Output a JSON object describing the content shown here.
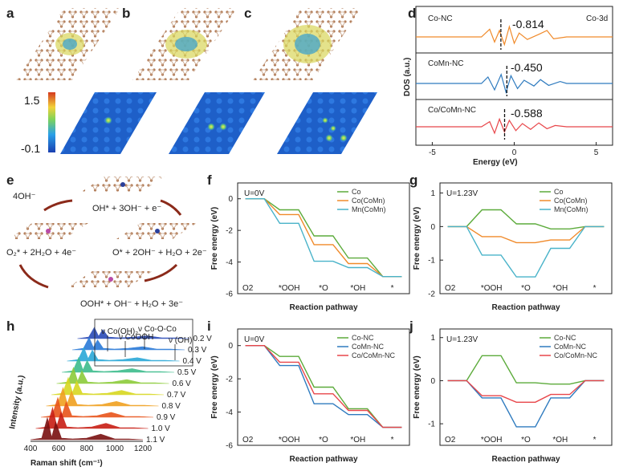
{
  "panel_labels": {
    "a": "a",
    "b": "b",
    "c": "c",
    "d": "d",
    "e": "e",
    "f": "f",
    "g": "g",
    "h": "h",
    "i": "i",
    "j": "j"
  },
  "colorbar": {
    "max": "1.5",
    "min": "-0.1"
  },
  "colors": {
    "orange": "#f08a2a",
    "blue": "#2f7bbf",
    "red": "#e8464a",
    "green": "#5cab3b",
    "cyan": "#49b3c9"
  },
  "icons": [
    "graphene-lattice-icon",
    "charge-density-icon",
    "reaction-arrow-icon"
  ],
  "panel_e": {
    "top": "OH* + 3OH⁻ + e⁻",
    "left_top": "4OH⁻",
    "left": "O₂* + 2H₂O + 4e⁻",
    "right": "O* + 2OH⁻ + H₂O + 2e⁻",
    "bottom": "OOH* + OH⁻ + H₂O + 3e⁻"
  },
  "chart_data": [
    {
      "id": "d",
      "type": "line",
      "title": "Co-3d",
      "xlabel": "Energy (eV)",
      "ylabel": "DOS (a.u.)",
      "xlim": [
        -6,
        6
      ],
      "xticks": [
        -5,
        0,
        5
      ],
      "series": [
        {
          "name": "Co-NC",
          "d_band_center": "-0.814",
          "color": "#f08a2a"
        },
        {
          "name": "CoMn-NC",
          "d_band_center": "-0.450",
          "color": "#2f7bbf"
        },
        {
          "name": "Co/CoMn-NC",
          "d_band_center": "-0.588",
          "color": "#e8464a"
        }
      ]
    },
    {
      "id": "f",
      "type": "line",
      "title": "U=0V",
      "xlabel": "Reaction pathway",
      "ylabel": "Free energy (eV)",
      "ylim": [
        -6,
        1
      ],
      "yticks": [
        0,
        -2,
        -4,
        -6
      ],
      "categories": [
        "O2",
        "*OOH",
        "*O",
        "*OH",
        "*"
      ],
      "series": [
        {
          "name": "Co",
          "color": "#5cab3b",
          "values": [
            0,
            -0.7,
            -2.35,
            -3.75,
            -4.92
          ]
        },
        {
          "name": "Co(CoMn)",
          "color": "#f08a2a",
          "values": [
            0,
            -1.0,
            -2.9,
            -4.1,
            -4.92
          ]
        },
        {
          "name": "Mn(CoMn)",
          "color": "#49b3c9",
          "values": [
            0,
            -1.55,
            -3.95,
            -4.35,
            -4.92
          ]
        }
      ]
    },
    {
      "id": "g",
      "type": "line",
      "title": "U=1.23V",
      "xlabel": "Reaction pathway",
      "ylabel": "Free energy (eV)",
      "ylim": [
        -2,
        1.3
      ],
      "yticks": [
        1,
        0,
        -1,
        -2
      ],
      "categories": [
        "O2",
        "*OOH",
        "*O",
        "*OH",
        "*"
      ],
      "series": [
        {
          "name": "Co",
          "color": "#5cab3b",
          "values": [
            0,
            0.5,
            0.08,
            -0.07,
            0
          ]
        },
        {
          "name": "Co(CoMn)",
          "color": "#f08a2a",
          "values": [
            0,
            -0.3,
            -0.48,
            -0.4,
            0
          ]
        },
        {
          "name": "Mn(CoMn)",
          "color": "#49b3c9",
          "values": [
            0,
            -0.85,
            -1.5,
            -0.65,
            0
          ]
        }
      ]
    },
    {
      "id": "h",
      "type": "line",
      "xlabel": "Raman shift (cm⁻¹)",
      "ylabel": "Intensity (a.u.)",
      "xlim": [
        400,
        1200
      ],
      "xticks": [
        400,
        600,
        800,
        1000,
        1200
      ],
      "voltages": [
        "0.2 V",
        "0.3 V",
        "0.4 V",
        "0.5 V",
        "0.6 V",
        "0.7 V",
        "0.8 V",
        "0.9 V",
        "1.0 V",
        "1.1 V"
      ],
      "annotations": [
        "ν Co(OH)₂",
        "ν CoOOH",
        "ν Co-O-Co",
        "ν (OH)"
      ]
    },
    {
      "id": "i",
      "type": "line",
      "title": "U=0V",
      "xlabel": "Reaction pathway",
      "ylabel": "Free energy (eV)",
      "ylim": [
        -6,
        1
      ],
      "yticks": [
        0,
        -2,
        -4,
        -6
      ],
      "categories": [
        "O2",
        "*OOH",
        "*O",
        "*OH",
        "*"
      ],
      "series": [
        {
          "name": "Co-NC",
          "color": "#5cab3b",
          "values": [
            0,
            -0.65,
            -2.5,
            -3.8,
            -4.92
          ]
        },
        {
          "name": "CoMn-NC",
          "color": "#2f7bbf",
          "values": [
            0,
            -1.2,
            -3.5,
            -4.15,
            -4.92
          ]
        },
        {
          "name": "Co/CoMn-NC",
          "color": "#e8464a",
          "values": [
            0,
            -1.0,
            -2.9,
            -3.9,
            -4.92
          ]
        }
      ]
    },
    {
      "id": "j",
      "type": "line",
      "title": "U=1.23V",
      "xlabel": "Reaction pathway",
      "ylabel": "Free energy (eV)",
      "ylim": [
        -1.5,
        1.2
      ],
      "yticks": [
        1,
        0,
        -1
      ],
      "categories": [
        "O2",
        "*OOH",
        "*O",
        "*OH",
        "*"
      ],
      "series": [
        {
          "name": "Co-NC",
          "color": "#5cab3b",
          "values": [
            0,
            0.58,
            -0.05,
            -0.08,
            0
          ]
        },
        {
          "name": "CoMn-NC",
          "color": "#2f7bbf",
          "values": [
            0,
            -0.4,
            -1.07,
            -0.4,
            0
          ]
        },
        {
          "name": "Co/CoMn-NC",
          "color": "#e8464a",
          "values": [
            0,
            -0.35,
            -0.5,
            -0.32,
            0
          ]
        }
      ]
    }
  ]
}
